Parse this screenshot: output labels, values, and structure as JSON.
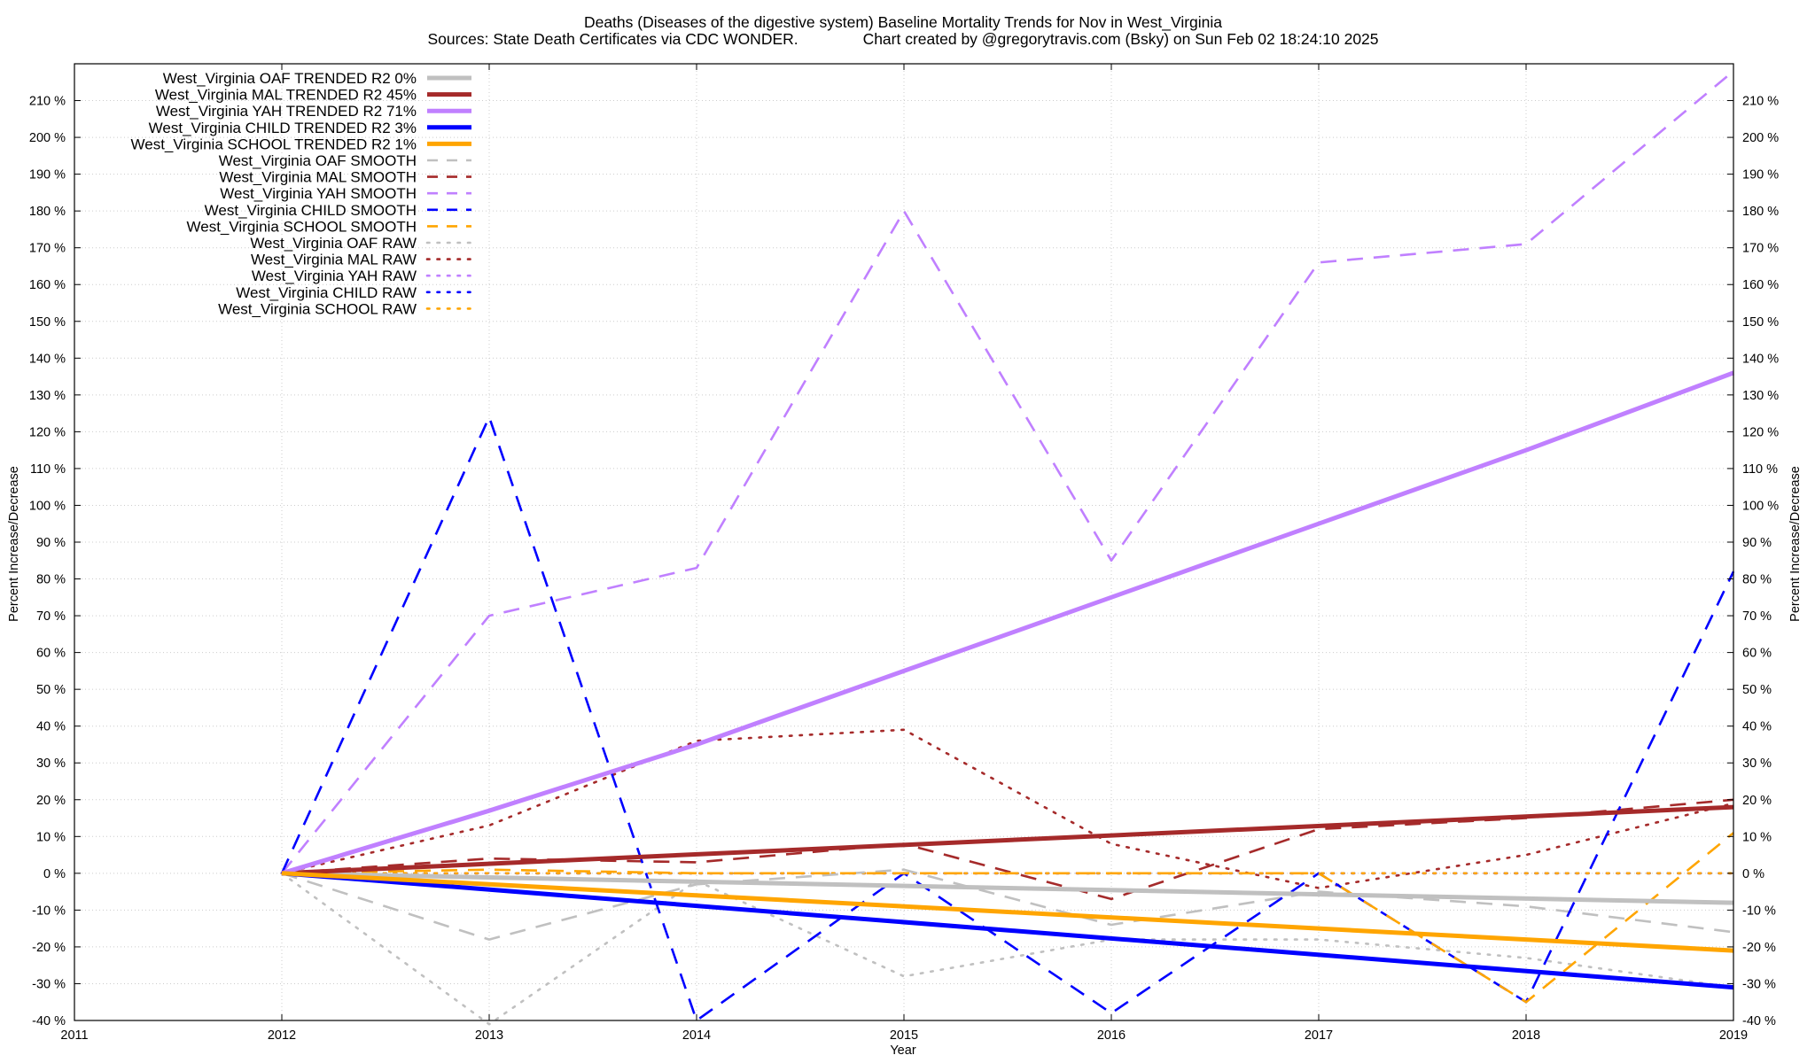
{
  "chart_data": {
    "type": "line",
    "title": "Deaths (Diseases of the digestive system)  Baseline Mortality Trends for Nov in West_Virginia",
    "subtitle": "Sources: State Death Certificates via CDC WONDER.               Chart created by @gregorytravis.com (Bsky) on Sun Feb 02 18:24:10 2025",
    "xlabel": "Year",
    "ylabel": "Percent Increase/Decrease",
    "y2label": "Percent Increase/Decrease",
    "xlim": [
      2011,
      2019
    ],
    "ylim": [
      -40,
      220
    ],
    "x_ticks": [
      "2011",
      "2012",
      "2013",
      "2014",
      "2015",
      "2016",
      "2017",
      "2018",
      "2019"
    ],
    "y_ticks": [
      "-40 %",
      "-30 %",
      "-20 %",
      "-10 %",
      "0 %",
      "10 %",
      "20 %",
      "30 %",
      "40 %",
      "50 %",
      "60 %",
      "70 %",
      "80 %",
      "90 %",
      "100 %",
      "110 %",
      "120 %",
      "130 %",
      "140 %",
      "150 %",
      "160 %",
      "170 %",
      "180 %",
      "190 %",
      "200 %",
      "210 %"
    ],
    "grid": true,
    "legend_position": "top-left",
    "series": [
      {
        "name": "West_Virginia OAF TRENDED R2  0%",
        "color": "#c0c0c0",
        "style": "solid",
        "x": [
          2012,
          2019
        ],
        "y": [
          0,
          -8
        ]
      },
      {
        "name": "West_Virginia MAL TRENDED R2  45%",
        "color": "#a52a2a",
        "style": "solid",
        "x": [
          2012,
          2019
        ],
        "y": [
          0,
          18
        ]
      },
      {
        "name": "West_Virginia YAH TRENDED R2  71%",
        "color": "#c080ff",
        "style": "solid",
        "x": [
          2012,
          2013,
          2014,
          2015,
          2016,
          2017,
          2018,
          2019
        ],
        "y": [
          0,
          17,
          35,
          55,
          75,
          95,
          115,
          136
        ]
      },
      {
        "name": "West_Virginia CHILD TRENDED R2  3%",
        "color": "#0000ff",
        "style": "solid",
        "x": [
          2012,
          2019
        ],
        "y": [
          0,
          -31
        ]
      },
      {
        "name": "West_Virginia SCHOOL TRENDED R2  1%",
        "color": "#ffa500",
        "style": "solid",
        "x": [
          2012,
          2019
        ],
        "y": [
          0,
          -21
        ]
      },
      {
        "name": "West_Virginia OAF SMOOTH",
        "color": "#c0c0c0",
        "style": "dashed",
        "x": [
          2012,
          2013,
          2014,
          2015,
          2016,
          2017,
          2018,
          2019
        ],
        "y": [
          0,
          -18,
          -3,
          1,
          -14,
          -5,
          -9,
          -16
        ]
      },
      {
        "name": "West_Virginia MAL SMOOTH",
        "color": "#a52a2a",
        "style": "dashed",
        "x": [
          2012,
          2013,
          2014,
          2015,
          2016,
          2017,
          2018,
          2019
        ],
        "y": [
          0,
          4,
          3,
          8,
          -7,
          12,
          15,
          20
        ]
      },
      {
        "name": "West_Virginia YAH SMOOTH",
        "color": "#c080ff",
        "style": "dashed",
        "x": [
          2012,
          2013,
          2014,
          2015,
          2016,
          2017,
          2018,
          2019
        ],
        "y": [
          0,
          70,
          83,
          180,
          85,
          166,
          171,
          218
        ]
      },
      {
        "name": "West_Virginia CHILD SMOOTH",
        "color": "#0000ff",
        "style": "dashed",
        "x": [
          2012,
          2013,
          2014,
          2015,
          2016,
          2017,
          2018,
          2019
        ],
        "y": [
          0,
          124,
          -40,
          0,
          -38,
          0,
          -35,
          82
        ]
      },
      {
        "name": "West_Virginia SCHOOL SMOOTH",
        "color": "#ffa500",
        "style": "dashed",
        "x": [
          2012,
          2013,
          2014,
          2015,
          2016,
          2017,
          2018,
          2019
        ],
        "y": [
          0,
          1,
          0,
          0,
          0,
          0,
          -35,
          11
        ]
      },
      {
        "name": "West_Virginia OAF RAW",
        "color": "#c0c0c0",
        "style": "dotted",
        "x": [
          2012,
          2013,
          2014,
          2015,
          2016,
          2017,
          2018,
          2019
        ],
        "y": [
          0,
          -41,
          -2,
          -28,
          -18,
          -18,
          -23,
          -31
        ]
      },
      {
        "name": "West_Virginia MAL RAW",
        "color": "#a52a2a",
        "style": "dotted",
        "x": [
          2012,
          2013,
          2014,
          2015,
          2016,
          2017,
          2018,
          2019
        ],
        "y": [
          0,
          13,
          36,
          39,
          8,
          -4,
          5,
          19
        ]
      },
      {
        "name": "West_Virginia YAH RAW",
        "color": "#c080ff",
        "style": "dotted",
        "x": [
          2012,
          2013,
          2014,
          2015,
          2016,
          2017,
          2018,
          2019
        ],
        "y": [
          0,
          0,
          0,
          0,
          0,
          0,
          0,
          0
        ]
      },
      {
        "name": "West_Virginia CHILD RAW",
        "color": "#0000ff",
        "style": "dotted",
        "x": [
          2012,
          2013,
          2014,
          2015,
          2016,
          2017,
          2018,
          2019
        ],
        "y": [
          0,
          0,
          0,
          0,
          0,
          0,
          0,
          0
        ]
      },
      {
        "name": "West_Virginia SCHOOL RAW",
        "color": "#ffa500",
        "style": "dotted",
        "x": [
          2012,
          2013,
          2014,
          2015,
          2016,
          2017,
          2018,
          2019
        ],
        "y": [
          0,
          0,
          0,
          0,
          0,
          0,
          0,
          0
        ]
      }
    ]
  }
}
